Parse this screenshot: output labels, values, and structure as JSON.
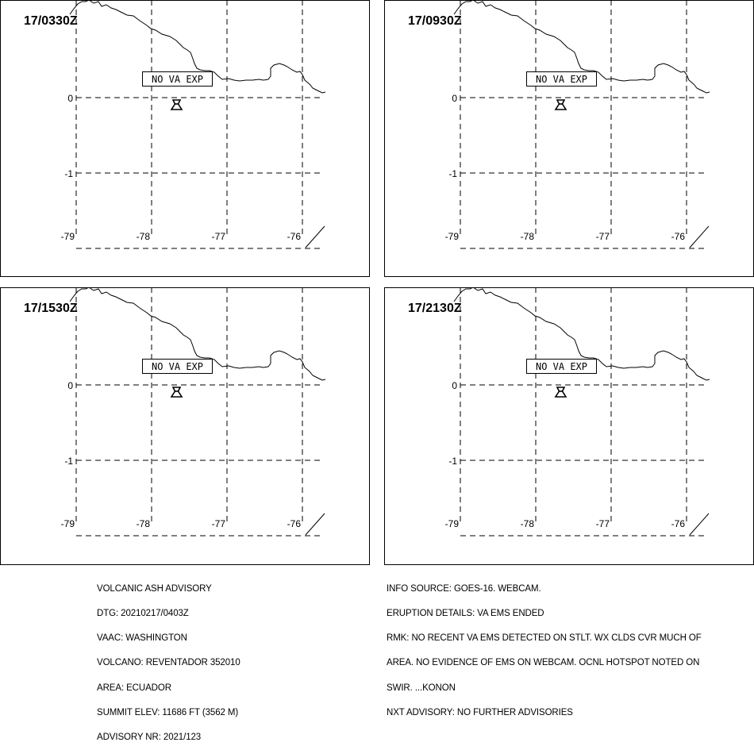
{
  "panels": [
    {
      "time": "17/0330Z",
      "status": "NO VA EXP"
    },
    {
      "time": "17/0930Z",
      "status": "NO VA EXP"
    },
    {
      "time": "17/1530Z",
      "status": "NO VA EXP"
    },
    {
      "time": "17/2130Z",
      "status": "NO VA EXP"
    }
  ],
  "axes": {
    "lat_labels": [
      "0",
      "-1"
    ],
    "lon_labels": [
      "-79",
      "-78",
      "-77",
      "-76"
    ]
  },
  "advisory": {
    "left": [
      "VOLCANIC ASH ADVISORY",
      "DTG: 20210217/0403Z",
      "VAAC: WASHINGTON",
      "VOLCANO: REVENTADOR 352010",
      "AREA: ECUADOR",
      "SUMMIT ELEV: 11686 FT (3562 M)",
      "ADVISORY NR: 2021/123"
    ],
    "right": [
      "INFO SOURCE: GOES-16. WEBCAM.",
      "ERUPTION DETAILS: VA EMS ENDED",
      "RMK: NO RECENT VA EMS DETECTED ON STLT. WX CLDS CVR MUCH OF",
      "AREA. NO EVIDENCE OF EMS ON WEBCAM. OCNL HOTSPOT NOTED ON",
      "SWIR. ...KONON",
      "NXT ADVISORY: NO FURTHER ADVISORIES"
    ]
  },
  "icons": {
    "volcano": "volcano-icon"
  }
}
